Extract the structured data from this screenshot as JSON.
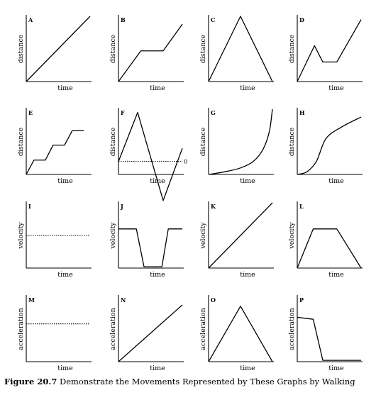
{
  "caption": {
    "label": "Figure 20.7",
    "text": "Demonstrate the Movements Represented by These Graphs by Walking"
  },
  "chart_data": [
    {
      "type": "line",
      "id": "A",
      "ylabel": "distance",
      "xlabel": "time",
      "x": [
        0,
        1
      ],
      "y": [
        0,
        1
      ]
    },
    {
      "type": "line",
      "id": "B",
      "ylabel": "distance",
      "xlabel": "time",
      "x": [
        0,
        0.35,
        0.7,
        1
      ],
      "y": [
        0,
        0.47,
        0.47,
        0.88
      ]
    },
    {
      "type": "line",
      "id": "C",
      "ylabel": "distance",
      "xlabel": "time",
      "x": [
        0,
        0.5,
        1
      ],
      "y": [
        0,
        1,
        0
      ]
    },
    {
      "type": "line",
      "id": "D",
      "ylabel": "distance",
      "xlabel": "time",
      "x": [
        0,
        0.27,
        0.4,
        0.62,
        1
      ],
      "y": [
        0,
        0.55,
        0.3,
        0.3,
        0.95
      ]
    },
    {
      "type": "line",
      "id": "E",
      "ylabel": "distance",
      "xlabel": "time",
      "x": [
        0,
        0.12,
        0.3,
        0.42,
        0.6,
        0.72,
        0.9
      ],
      "y": [
        0,
        0.22,
        0.22,
        0.45,
        0.45,
        0.67,
        0.67
      ]
    },
    {
      "type": "line",
      "id": "F",
      "ylabel": "distance",
      "xlabel": "time",
      "x": [
        0,
        0.3,
        0.7,
        1
      ],
      "y": [
        0.2,
        0.95,
        -0.4,
        0.4
      ],
      "reference_line": {
        "y": 0.2,
        "style": "dotted",
        "label": "0"
      }
    },
    {
      "type": "line",
      "id": "G",
      "ylabel": "distance",
      "xlabel": "time",
      "curve": "exponential",
      "x": [
        0,
        0.25,
        0.5,
        0.7,
        0.85,
        0.95,
        1
      ],
      "y": [
        0,
        0.04,
        0.1,
        0.2,
        0.38,
        0.65,
        1
      ]
    },
    {
      "type": "line",
      "id": "H",
      "ylabel": "distance",
      "xlabel": "time",
      "curve": "s-shaped",
      "x": [
        0,
        0.15,
        0.3,
        0.45,
        0.7,
        1
      ],
      "y": [
        0,
        0.04,
        0.2,
        0.55,
        0.73,
        0.88
      ]
    },
    {
      "type": "line",
      "id": "I",
      "ylabel": "velocity",
      "xlabel": "time",
      "x": [
        0,
        1
      ],
      "y": [
        0.5,
        0.5
      ],
      "line_style": "dotted"
    },
    {
      "type": "line",
      "id": "J",
      "ylabel": "velocity",
      "xlabel": "time",
      "x": [
        0,
        0.28,
        0.4,
        0.68,
        0.78,
        1
      ],
      "y": [
        0.6,
        0.6,
        0.02,
        0.02,
        0.6,
        0.6
      ]
    },
    {
      "type": "line",
      "id": "K",
      "ylabel": "velocity",
      "xlabel": "time",
      "x": [
        0,
        1
      ],
      "y": [
        0,
        1
      ]
    },
    {
      "type": "line",
      "id": "L",
      "ylabel": "velocity",
      "xlabel": "time",
      "x": [
        0,
        0.25,
        0.62,
        1
      ],
      "y": [
        0,
        0.6,
        0.6,
        0
      ]
    },
    {
      "type": "line",
      "id": "M",
      "ylabel": "acceleration",
      "xlabel": "time",
      "x": [
        0,
        1
      ],
      "y": [
        0.58,
        0.58
      ],
      "line_style": "dotted"
    },
    {
      "type": "line",
      "id": "N",
      "ylabel": "acceleration",
      "xlabel": "time",
      "x": [
        0,
        1
      ],
      "y": [
        0,
        0.87
      ]
    },
    {
      "type": "line",
      "id": "O",
      "ylabel": "acceleration",
      "xlabel": "time",
      "x": [
        0,
        0.5,
        1
      ],
      "y": [
        0,
        0.85,
        0
      ]
    },
    {
      "type": "line",
      "id": "P",
      "ylabel": "acceleration",
      "xlabel": "time",
      "x": [
        0,
        0.25,
        0.4,
        1
      ],
      "y": [
        0.68,
        0.65,
        0.02,
        0.02
      ]
    }
  ]
}
